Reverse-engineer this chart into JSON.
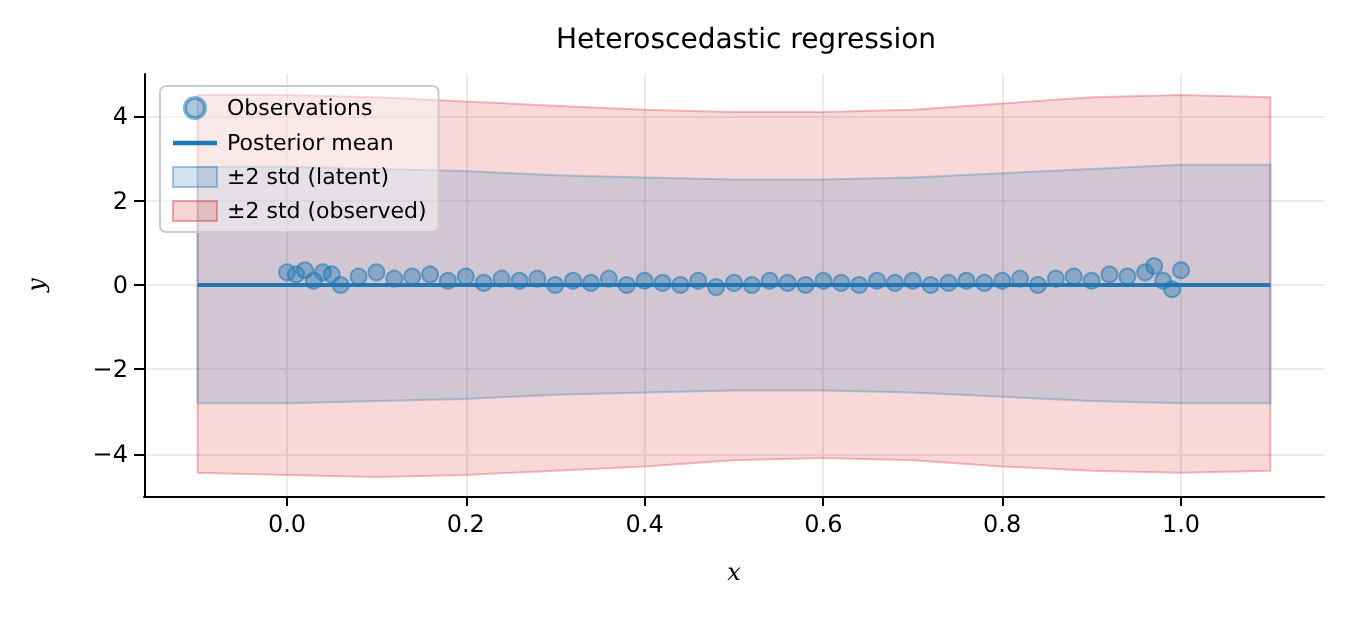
{
  "chart_data": {
    "type": "scatter",
    "title": "Heteroscedastic regression",
    "xlabel": "x",
    "ylabel": "y",
    "xlim": [
      -0.16,
      1.16
    ],
    "ylim": [
      -5,
      5
    ],
    "xticks": [
      {
        "value": 0,
        "label": "0.0"
      },
      {
        "value": 0.2,
        "label": "0.2"
      },
      {
        "value": 0.4,
        "label": "0.4"
      },
      {
        "value": 0.6,
        "label": "0.6"
      },
      {
        "value": 0.8,
        "label": "0.8"
      },
      {
        "value": 1,
        "label": "1.0"
      }
    ],
    "yticks": [
      {
        "value": -4,
        "label": "−4"
      },
      {
        "value": -2,
        "label": "−2"
      },
      {
        "value": 0,
        "label": "0"
      },
      {
        "value": 2,
        "label": "2"
      },
      {
        "value": 4,
        "label": "4"
      }
    ],
    "grid": true,
    "legend": "top left",
    "series": [
      {
        "name": "±2 std (observed)",
        "type": "line",
        "color": "#d62728",
        "x": [
          -0.1,
          0,
          0.1,
          0.2,
          0.3,
          0.4,
          0.5,
          0.6,
          0.7,
          0.8,
          0.9,
          1,
          1.1
        ],
        "values": [
          null,
          null,
          null,
          null,
          null,
          null,
          null,
          null,
          null,
          null,
          null,
          null,
          null
        ],
        "upper": [
          4.5,
          4.5,
          4.45,
          4.35,
          4.25,
          4.15,
          4.1,
          4.1,
          4.15,
          4.3,
          4.45,
          4.5,
          4.45
        ],
        "lower": [
          -4.45,
          -4.5,
          -4.55,
          -4.5,
          -4.4,
          -4.3,
          -4.15,
          -4.1,
          -4.15,
          -4.3,
          -4.4,
          -4.45,
          -4.4
        ]
      },
      {
        "name": "±2 std (latent)",
        "type": "line",
        "color": "#1f77b4",
        "x": [
          -0.1,
          0,
          0.1,
          0.2,
          0.3,
          0.4,
          0.5,
          0.6,
          0.7,
          0.8,
          0.9,
          1,
          1.1
        ],
        "values": [
          null,
          null,
          null,
          null,
          null,
          null,
          null,
          null,
          null,
          null,
          null,
          null,
          null
        ],
        "upper": [
          2.8,
          2.8,
          2.75,
          2.7,
          2.6,
          2.55,
          2.5,
          2.5,
          2.55,
          2.65,
          2.75,
          2.85,
          2.85
        ],
        "lower": [
          -2.8,
          -2.8,
          -2.75,
          -2.7,
          -2.6,
          -2.55,
          -2.5,
          -2.5,
          -2.55,
          -2.65,
          -2.75,
          -2.8,
          -2.8
        ]
      },
      {
        "name": "Posterior mean",
        "type": "line",
        "color": "#1f77b4",
        "line_style": "solid",
        "marker": "none",
        "x": [
          -0.1,
          1.1
        ],
        "values": [
          0,
          0
        ]
      },
      {
        "name": "Observations",
        "color": "#1f77b4",
        "marker": "circle",
        "x": [
          0.0,
          0.01,
          0.02,
          0.03,
          0.04,
          0.05,
          0.06,
          0.08,
          0.1,
          0.12,
          0.14,
          0.16,
          0.18,
          0.2,
          0.22,
          0.24,
          0.26,
          0.28,
          0.3,
          0.32,
          0.34,
          0.36,
          0.38,
          0.4,
          0.42,
          0.44,
          0.46,
          0.48,
          0.5,
          0.52,
          0.54,
          0.56,
          0.58,
          0.6,
          0.62,
          0.64,
          0.66,
          0.68,
          0.7,
          0.72,
          0.74,
          0.76,
          0.78,
          0.8,
          0.82,
          0.84,
          0.86,
          0.88,
          0.9,
          0.92,
          0.94,
          0.96,
          0.97,
          0.98,
          0.99,
          1.0
        ],
        "values": [
          0.3,
          0.25,
          0.35,
          0.1,
          0.3,
          0.25,
          0.0,
          0.2,
          0.3,
          0.15,
          0.2,
          0.25,
          0.1,
          0.2,
          0.05,
          0.15,
          0.1,
          0.15,
          0.0,
          0.1,
          0.05,
          0.15,
          0.0,
          0.1,
          0.05,
          0.0,
          0.1,
          -0.05,
          0.05,
          0.0,
          0.1,
          0.05,
          0.0,
          0.1,
          0.05,
          0.0,
          0.1,
          0.05,
          0.1,
          0.0,
          0.05,
          0.1,
          0.05,
          0.1,
          0.15,
          0.0,
          0.15,
          0.2,
          0.1,
          0.25,
          0.2,
          0.3,
          0.45,
          0.1,
          -0.1,
          0.35
        ]
      }
    ]
  }
}
